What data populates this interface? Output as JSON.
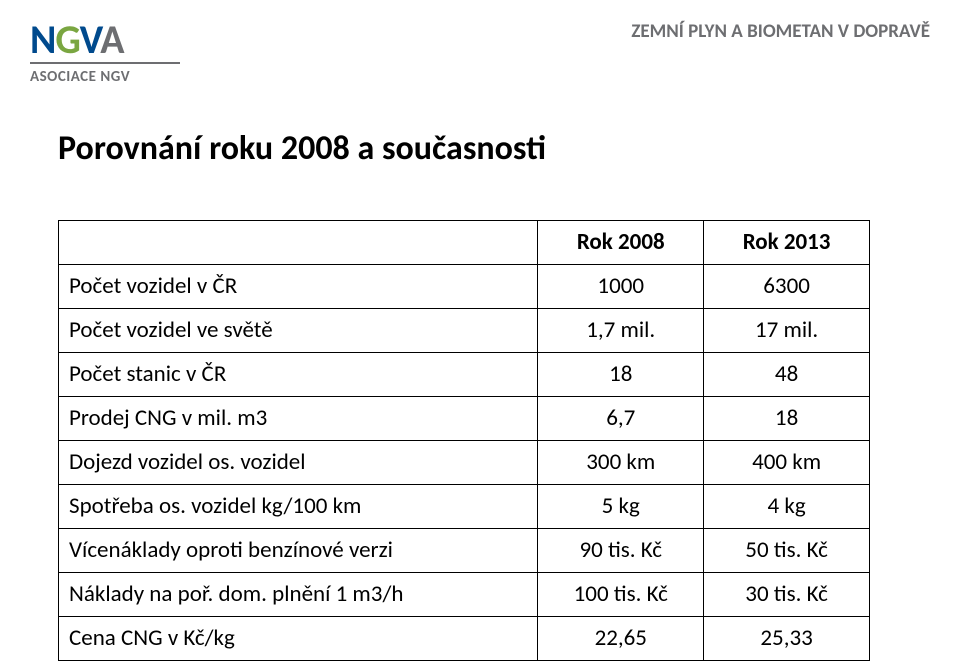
{
  "header": {
    "logo_letters": [
      "N",
      "G",
      "V",
      "A"
    ],
    "logo_sub": "ASOCIACE NGV",
    "tagline": "ZEMNÍ PLYN A BIOMETAN V DOPRAVĚ"
  },
  "title": "Porovnání roku 2008 a současnosti",
  "table": {
    "col1_header": "",
    "col2_header": "Rok 2008",
    "col3_header": "Rok 2013",
    "rows": [
      {
        "label": "Počet vozidel v ČR",
        "c1": "1000",
        "c2": "6300"
      },
      {
        "label": "Počet vozidel ve světě",
        "c1": "1,7 mil.",
        "c2": "17 mil."
      },
      {
        "label": "Počet stanic v ČR",
        "c1": "18",
        "c2": "48"
      },
      {
        "label": "Prodej CNG v mil. m3",
        "c1": "6,7",
        "c2": "18"
      },
      {
        "label": "Dojezd vozidel os. vozidel",
        "c1": "300 km",
        "c2": "400 km"
      },
      {
        "label": "Spotřeba os. vozidel kg/100 km",
        "c1": "5 kg",
        "c2": "4 kg"
      },
      {
        "label": "Vícenáklady oproti benzínové verzi",
        "c1": "90 tis. Kč",
        "c2": "50 tis. Kč"
      },
      {
        "label": "Náklady na poř. dom. plnění 1 m3/h",
        "c1": "100 tis. Kč",
        "c2": "30 tis. Kč"
      },
      {
        "label": "Cena CNG v Kč/kg",
        "c1": "22,65",
        "c2": "25,33"
      }
    ]
  }
}
